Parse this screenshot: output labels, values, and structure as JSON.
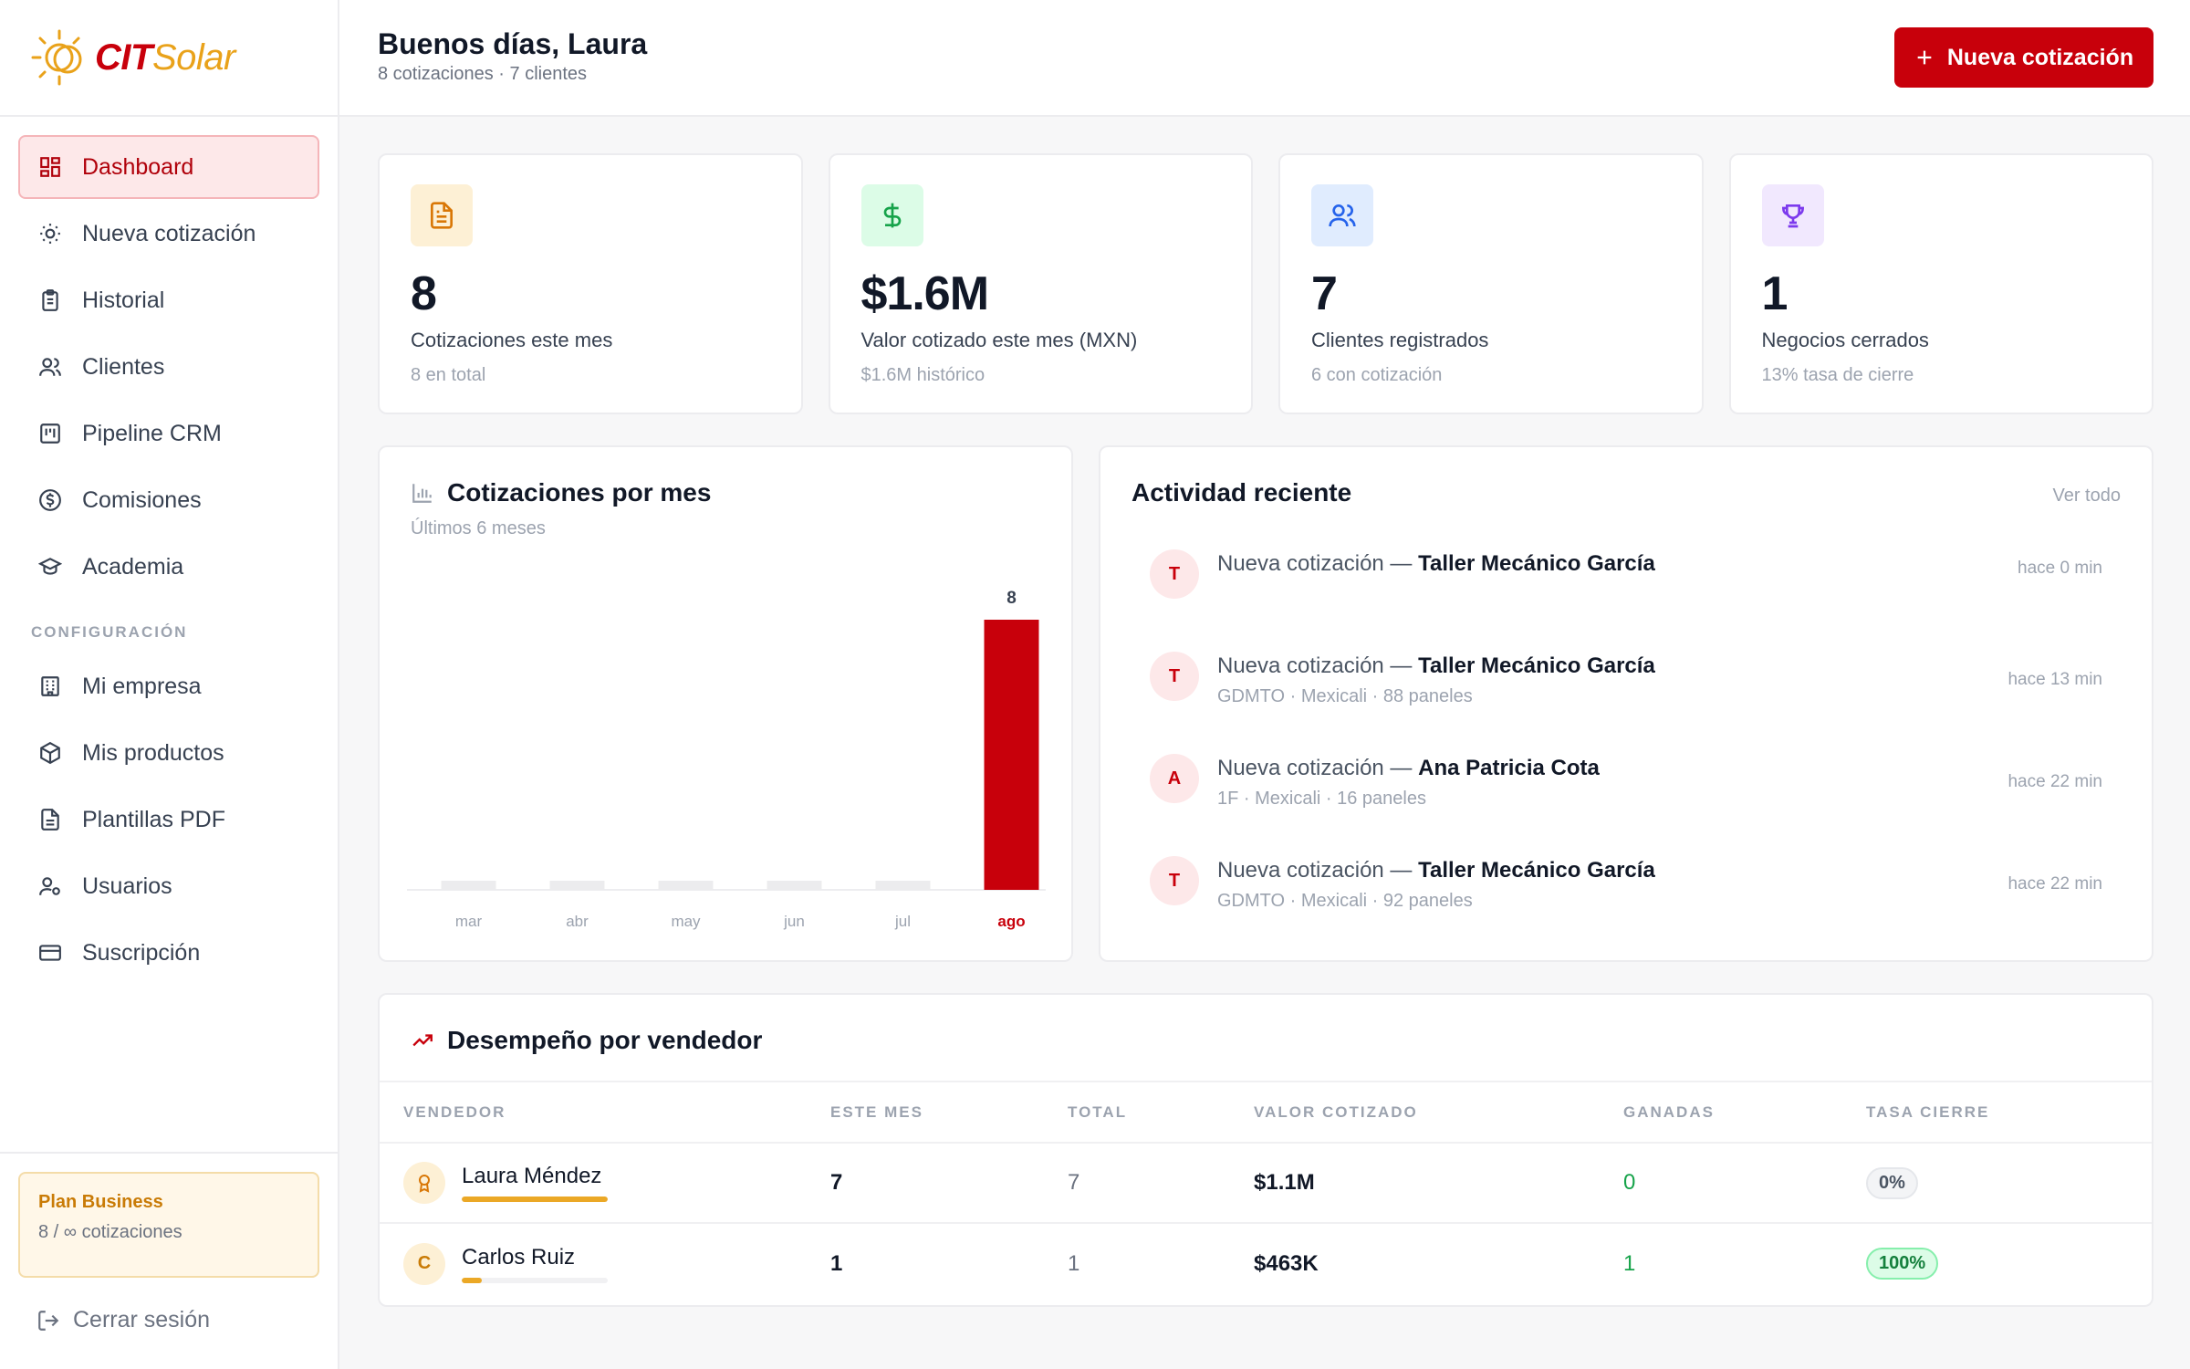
{
  "brand": {
    "cit": "CIT",
    "solar": "Solar"
  },
  "sidebar": {
    "items": [
      {
        "label": "Dashboard",
        "icon": "grid-icon",
        "active": true
      },
      {
        "label": "Nueva cotización",
        "icon": "sun-icon"
      },
      {
        "label": "Historial",
        "icon": "clipboard-icon"
      },
      {
        "label": "Clientes",
        "icon": "users-icon"
      },
      {
        "label": "Pipeline CRM",
        "icon": "kanban-icon"
      },
      {
        "label": "Comisiones",
        "icon": "dollar-circle-icon"
      },
      {
        "label": "Academia",
        "icon": "graduation-cap-icon"
      }
    ],
    "section_label": "CONFIGURACIÓN",
    "config_items": [
      {
        "label": "Mi empresa",
        "icon": "building-icon"
      },
      {
        "label": "Mis productos",
        "icon": "box-icon"
      },
      {
        "label": "Plantillas PDF",
        "icon": "file-icon"
      },
      {
        "label": "Usuarios",
        "icon": "user-cog-icon"
      },
      {
        "label": "Suscripción",
        "icon": "credit-card-icon"
      }
    ],
    "plan": {
      "title": "Plan Business",
      "usage": "8 / ∞ cotizaciones"
    },
    "logout": "Cerrar sesión"
  },
  "header": {
    "greeting": "Buenos días, Laura",
    "subtitle": "8 cotizaciones · 7 clientes",
    "new_button": "Nueva cotización"
  },
  "stats": [
    {
      "value": "8",
      "label": "Cotizaciones este mes",
      "sub": "8 en total",
      "icon": "document-icon",
      "icon_bg": "#fdf0d5",
      "icon_color": "#d97706"
    },
    {
      "value": "$1.6M",
      "label": "Valor cotizado este mes (MXN)",
      "sub": "$1.6M histórico",
      "icon": "dollar-icon",
      "icon_bg": "#dcfce7",
      "icon_color": "#16a34a"
    },
    {
      "value": "7",
      "label": "Clientes registrados",
      "sub": "6 con cotización",
      "icon": "users-icon",
      "icon_bg": "#e0ecfe",
      "icon_color": "#2563eb"
    },
    {
      "value": "1",
      "label": "Negocios cerrados",
      "sub": "13% tasa de cierre",
      "icon": "trophy-icon",
      "icon_bg": "#f1e8fe",
      "icon_color": "#7c3aed"
    }
  ],
  "chart_card": {
    "title": "Cotizaciones por mes",
    "subtitle": "Últimos 6 meses"
  },
  "chart_data": {
    "type": "bar",
    "categories": [
      "mar",
      "abr",
      "may",
      "jun",
      "jul",
      "ago"
    ],
    "values": [
      0,
      0,
      0,
      0,
      0,
      8
    ],
    "data_labels": [
      "",
      "",
      "",
      "",
      "",
      "8"
    ],
    "highlight_index": 5,
    "highlight_color": "#c8000b",
    "base_color": "#ececee",
    "ylim": [
      0,
      8
    ]
  },
  "activity": {
    "title": "Actividad reciente",
    "see_all": "Ver todo",
    "items": [
      {
        "initial": "T",
        "prefix": "Nueva cotización — ",
        "name": "Taller Mecánico García",
        "detail": "",
        "time": "hace 0 min"
      },
      {
        "initial": "T",
        "prefix": "Nueva cotización — ",
        "name": "Taller Mecánico García",
        "detail": "GDMTO · Mexicali · 88 paneles",
        "time": "hace 13 min"
      },
      {
        "initial": "A",
        "prefix": "Nueva cotización — ",
        "name": "Ana Patricia Cota",
        "detail": "1F · Mexicali · 16 paneles",
        "time": "hace 22 min"
      },
      {
        "initial": "T",
        "prefix": "Nueva cotización — ",
        "name": "Taller Mecánico García",
        "detail": "GDMTO · Mexicali · 92 paneles",
        "time": "hace 22 min"
      }
    ]
  },
  "performance": {
    "title": "Desempeño por vendedor",
    "columns": [
      "VENDEDOR",
      "ESTE MES",
      "TOTAL",
      "VALOR COTIZADO",
      "GANADAS",
      "TASA CIERRE"
    ],
    "rows": [
      {
        "avatar": "award-icon",
        "initial": "",
        "name": "Laura Méndez",
        "progress": 1.0,
        "this_month": "7",
        "total": "7",
        "value": "$1.1M",
        "won": "0",
        "rate": "0%",
        "rate_style": "gray"
      },
      {
        "avatar": "",
        "initial": "C",
        "name": "Carlos Ruiz",
        "progress": 0.14,
        "this_month": "1",
        "total": "1",
        "value": "$463K",
        "won": "1",
        "rate": "100%",
        "rate_style": "green"
      }
    ]
  }
}
